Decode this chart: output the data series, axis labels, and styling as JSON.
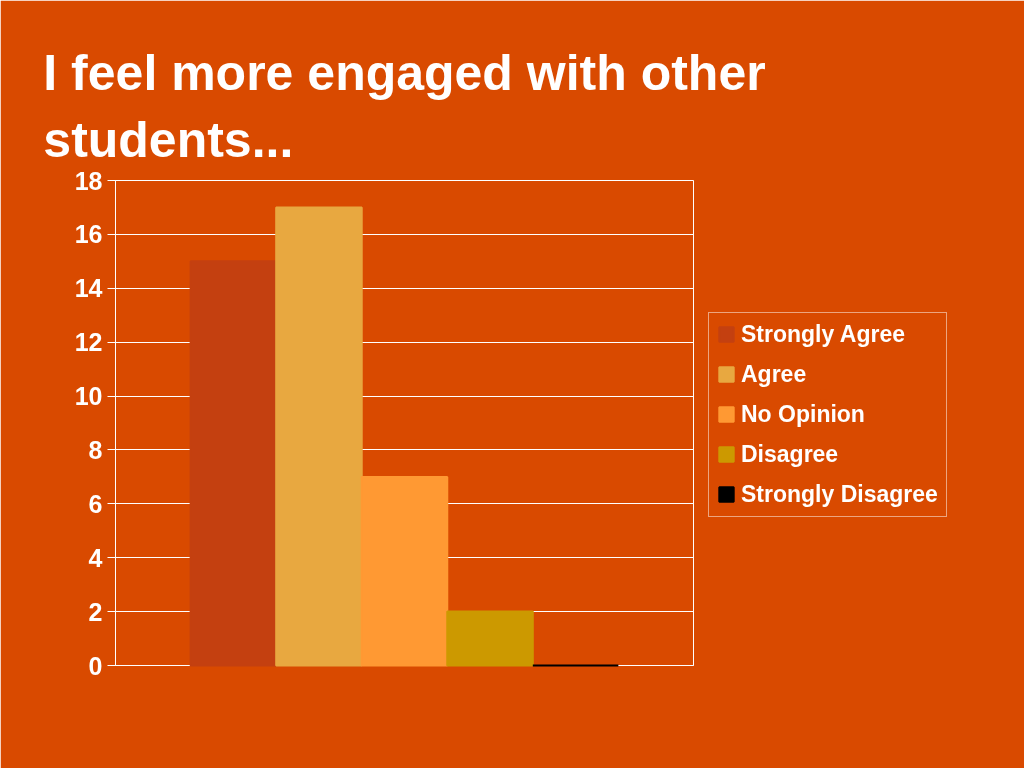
{
  "chart_data": {
    "type": "bar",
    "title": "I feel more engaged with other\nstudents...",
    "categories": [
      null
    ],
    "series": [
      {
        "name": "Strongly Agree",
        "color": "#c44010",
        "values": [
          15
        ]
      },
      {
        "name": "Agree",
        "color": "#e8a840",
        "values": [
          17
        ]
      },
      {
        "name": "No Opinion",
        "color": "#ff9933",
        "values": [
          7
        ]
      },
      {
        "name": "Disagree",
        "color": "#cc9900",
        "values": [
          2
        ]
      },
      {
        "name": "Strongly Disagree",
        "color": "#000000",
        "values": [
          0
        ]
      }
    ],
    "ylim": [
      0,
      18
    ],
    "yticks": [
      0,
      2,
      4,
      6,
      8,
      10,
      12,
      14,
      16,
      18
    ],
    "grid": "y",
    "legend": "right"
  }
}
